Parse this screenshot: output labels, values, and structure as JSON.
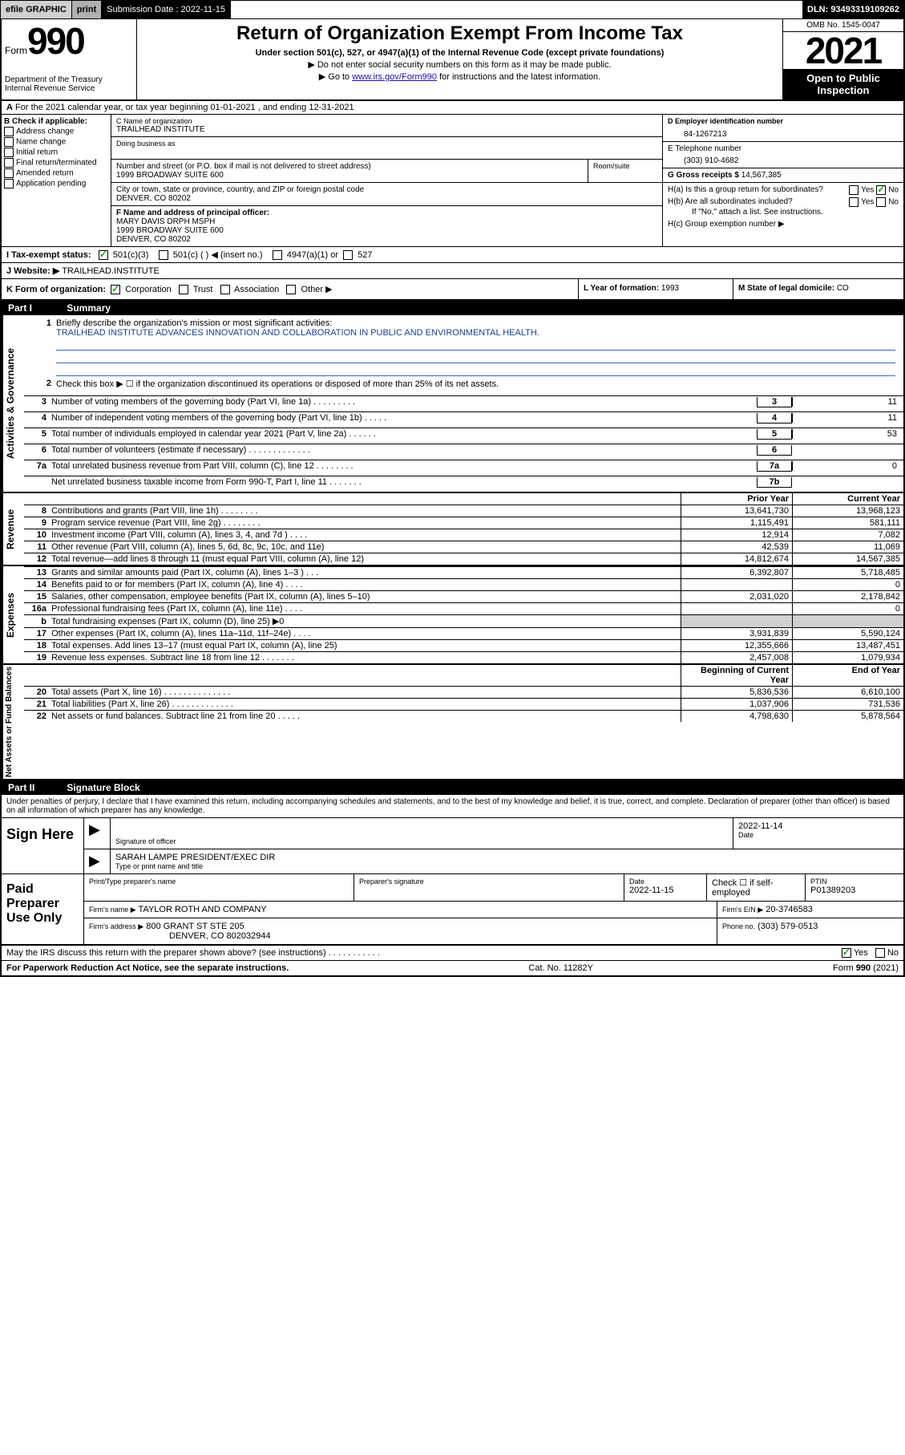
{
  "topbar": {
    "efile": "efile GRAPHIC",
    "print": "print",
    "submission_label": "Submission Date : 2022-11-15",
    "dln": "DLN: 93493319109262"
  },
  "header": {
    "form_word": "Form",
    "form_num": "990",
    "dept": "Department of the Treasury",
    "irs": "Internal Revenue Service",
    "title": "Return of Organization Exempt From Income Tax",
    "sub1": "Under section 501(c), 527, or 4947(a)(1) of the Internal Revenue Code (except private foundations)",
    "sub2": "▶ Do not enter social security numbers on this form as it may be made public.",
    "sub3_pre": "▶ Go to ",
    "sub3_link": "www.irs.gov/Form990",
    "sub3_post": " for instructions and the latest information.",
    "omb": "OMB No. 1545-0047",
    "year": "2021",
    "open": "Open to Public Inspection"
  },
  "row_a": "For the 2021 calendar year, or tax year beginning 01-01-2021   , and ending 12-31-2021",
  "section_b": {
    "label": "B Check if applicable:",
    "items": [
      "Address change",
      "Name change",
      "Initial return",
      "Final return/terminated",
      "Amended return",
      "Application pending"
    ]
  },
  "section_c": {
    "name_lbl": "C Name of organization",
    "name": "TRAILHEAD INSTITUTE",
    "dba_lbl": "Doing business as",
    "addr_lbl": "Number and street (or P.O. box if mail is not delivered to street address)",
    "addr": "1999 BROADWAY SUITE 600",
    "room_lbl": "Room/suite",
    "city_lbl": "City or town, state or province, country, and ZIP or foreign postal code",
    "city": "DENVER, CO  80202"
  },
  "section_d": {
    "lbl": "D Employer identification number",
    "val": "84-1267213"
  },
  "section_e": {
    "lbl": "E Telephone number",
    "val": "(303) 910-4682"
  },
  "section_g": {
    "lbl": "G Gross receipts $",
    "val": "14,567,385"
  },
  "section_f": {
    "lbl": "F Name and address of principal officer:",
    "name": "MARY DAVIS DRPH MSPH",
    "addr": "1999 BROADWAY SUITE 600",
    "city": "DENVER, CO  80202"
  },
  "section_h": {
    "ha": "H(a)  Is this a group return for subordinates?",
    "hb": "H(b)  Are all subordinates included?",
    "hb_note": "If \"No,\" attach a list. See instructions.",
    "hc": "H(c)  Group exemption number ▶",
    "yes": "Yes",
    "no": "No"
  },
  "row_i": {
    "lbl": "I   Tax-exempt status:",
    "c3": "501(c)(3)",
    "c": "501(c) (  ) ◀ (insert no.)",
    "a1": "4947(a)(1) or",
    "s527": "527"
  },
  "row_j": {
    "lbl": "J   Website: ▶",
    "val": "TRAILHEAD.INSTITUTE"
  },
  "row_k": {
    "lbl": "K Form of organization:",
    "corp": "Corporation",
    "trust": "Trust",
    "assoc": "Association",
    "other": "Other ▶"
  },
  "row_l": {
    "lbl": "L Year of formation:",
    "val": "1993"
  },
  "row_m": {
    "lbl": "M State of legal domicile:",
    "val": "CO"
  },
  "part1": {
    "header_part": "Part I",
    "header_title": "Summary",
    "vtab_gov": "Activities & Governance",
    "vtab_rev": "Revenue",
    "vtab_exp": "Expenses",
    "vtab_net": "Net Assets or Fund Balances",
    "line1_lbl": "Briefly describe the organization's mission or most significant activities:",
    "line1_val": "TRAILHEAD INSTITUTE ADVANCES INNOVATION AND COLLABORATION IN PUBLIC AND ENVIRONMENTAL HEALTH.",
    "line2": "Check this box ▶ ☐  if the organization discontinued its operations or disposed of more than 25% of its net assets.",
    "gov_lines": [
      {
        "n": "3",
        "t": "Number of voting members of the governing body (Part VI, line 1a)   .    .    .    .    .    .    .    .    .",
        "box": "3",
        "v": "11"
      },
      {
        "n": "4",
        "t": "Number of independent voting members of the governing body (Part VI, line 1b)   .    .    .    .    .",
        "box": "4",
        "v": "11"
      },
      {
        "n": "5",
        "t": "Total number of individuals employed in calendar year 2021 (Part V, line 2a)   .    .    .    .    .    .",
        "box": "5",
        "v": "53"
      },
      {
        "n": "6",
        "t": "Total number of volunteers (estimate if necessary)   .    .    .    .    .    .    .    .    .    .    .    .    .",
        "box": "6",
        "v": ""
      },
      {
        "n": "7a",
        "t": "Total unrelated business revenue from Part VIII, column (C), line 12   .    .    .    .    .    .    .    .",
        "box": "7a",
        "v": "0"
      },
      {
        "n": "",
        "t": "Net unrelated business taxable income from Form 990-T, Part I, line 11   .    .    .    .    .    .    .",
        "box": "7b",
        "v": ""
      }
    ],
    "col_prior": "Prior Year",
    "col_curr": "Current Year",
    "rev_lines": [
      {
        "n": "8",
        "t": "Contributions and grants (Part VIII, line 1h)   .    .    .    .    .    .    .    .",
        "p": "13,641,730",
        "c": "13,968,123"
      },
      {
        "n": "9",
        "t": "Program service revenue (Part VIII, line 2g)   .    .    .    .    .    .    .    .",
        "p": "1,115,491",
        "c": "581,111"
      },
      {
        "n": "10",
        "t": "Investment income (Part VIII, column (A), lines 3, 4, and 7d )   .    .    .    .",
        "p": "12,914",
        "c": "7,082"
      },
      {
        "n": "11",
        "t": "Other revenue (Part VIII, column (A), lines 5, 6d, 8c, 9c, 10c, and 11e)",
        "p": "42,539",
        "c": "11,069"
      },
      {
        "n": "12",
        "t": "Total revenue—add lines 8 through 11 (must equal Part VIII, column (A), line 12)",
        "p": "14,812,674",
        "c": "14,567,385"
      }
    ],
    "exp_lines": [
      {
        "n": "13",
        "t": "Grants and similar amounts paid (Part IX, column (A), lines 1–3 )   .    .    .",
        "p": "6,392,807",
        "c": "5,718,485"
      },
      {
        "n": "14",
        "t": "Benefits paid to or for members (Part IX, column (A), line 4)   .    .    .    .",
        "p": "",
        "c": "0"
      },
      {
        "n": "15",
        "t": "Salaries, other compensation, employee benefits (Part IX, column (A), lines 5–10)",
        "p": "2,031,020",
        "c": "2,178,842"
      },
      {
        "n": "16a",
        "t": "Professional fundraising fees (Part IX, column (A), line 11e)   .    .    .    .",
        "p": "",
        "c": "0"
      },
      {
        "n": "b",
        "t": "Total fundraising expenses (Part IX, column (D), line 25) ▶0",
        "p": "shade",
        "c": "shade"
      },
      {
        "n": "17",
        "t": "Other expenses (Part IX, column (A), lines 11a–11d, 11f–24e)  .    .    .    .",
        "p": "3,931,839",
        "c": "5,590,124"
      },
      {
        "n": "18",
        "t": "Total expenses. Add lines 13–17 (must equal Part IX, column (A), line 25)",
        "p": "12,355,666",
        "c": "13,487,451"
      },
      {
        "n": "19",
        "t": "Revenue less expenses. Subtract line 18 from line 12  .    .    .    .    .    .    .",
        "p": "2,457,008",
        "c": "1,079,934"
      }
    ],
    "col_beg": "Beginning of Current Year",
    "col_end": "End of Year",
    "net_lines": [
      {
        "n": "20",
        "t": "Total assets (Part X, line 16)  .    .    .    .    .    .    .    .    .    .    .    .    .    .",
        "p": "5,836,536",
        "c": "6,610,100"
      },
      {
        "n": "21",
        "t": "Total liabilities (Part X, line 26)  .    .    .    .    .    .    .    .    .    .    .    .    .",
        "p": "1,037,906",
        "c": "731,536"
      },
      {
        "n": "22",
        "t": "Net assets or fund balances. Subtract line 21 from line 20  .    .    .    .    .",
        "p": "4,798,630",
        "c": "5,878,564"
      }
    ]
  },
  "part2": {
    "header_part": "Part II",
    "header_title": "Signature Block",
    "penalties": "Under penalties of perjury, I declare that I have examined this return, including accompanying schedules and statements, and to the best of my knowledge and belief, it is true, correct, and complete. Declaration of preparer (other than officer) is based on all information of which preparer has any knowledge.",
    "sign_here": "Sign Here",
    "sig_officer_lbl": "Signature of officer",
    "sig_date_lbl": "Date",
    "sig_date": "2022-11-14",
    "sig_name": "SARAH LAMPE PRESIDENT/EXEC DIR",
    "sig_name_lbl": "Type or print name and title",
    "paid": "Paid Preparer Use Only",
    "prep_name_lbl": "Print/Type preparer's name",
    "prep_sig_lbl": "Preparer's signature",
    "prep_date_lbl": "Date",
    "prep_date": "2022-11-15",
    "self_emp": "Check ☐ if self-employed",
    "ptin_lbl": "PTIN",
    "ptin": "P01389203",
    "firm_name_lbl": "Firm's name    ▶",
    "firm_name": "TAYLOR ROTH AND COMPANY",
    "firm_ein_lbl": "Firm's EIN ▶",
    "firm_ein": "20-3746583",
    "firm_addr_lbl": "Firm's address ▶",
    "firm_addr1": "800 GRANT ST STE 205",
    "firm_addr2": "DENVER, CO  802032944",
    "phone_lbl": "Phone no.",
    "phone": "(303) 579-0513",
    "may_irs": "May the IRS discuss this return with the preparer shown above? (see instructions)   .    .    .    .    .    .    .    .    .    .    .",
    "yes": "Yes",
    "no": "No"
  },
  "footer": {
    "pra": "For Paperwork Reduction Act Notice, see the separate instructions.",
    "cat": "Cat. No. 11282Y",
    "form": "Form 990 (2021)"
  }
}
